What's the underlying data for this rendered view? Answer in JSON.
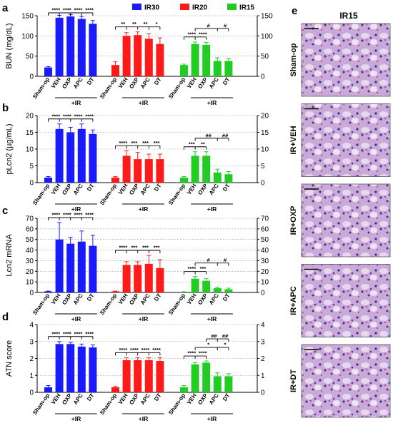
{
  "legend": [
    {
      "name": "IR30",
      "color": "#1a1aff"
    },
    {
      "name": "IR20",
      "color": "#ff1a1a"
    },
    {
      "name": "IR15",
      "color": "#22cc22"
    }
  ],
  "ir_label": "+IR",
  "chart_data": [
    {
      "panel": "a",
      "type": "bar",
      "ylabel": "BUN (mg/dL)",
      "ylim": [
        0,
        150
      ],
      "yticks": [
        0,
        50,
        100,
        150
      ],
      "groups": [
        {
          "series": "IR30",
          "categories": [
            "Sham-op",
            "VEH",
            "OXP",
            "APC",
            "DT"
          ],
          "values": [
            22,
            145,
            148,
            142,
            130
          ],
          "errors": [
            2,
            6,
            5,
            6,
            8
          ]
        },
        {
          "series": "IR20",
          "categories": [
            "Sham-op",
            "VEH",
            "OXP",
            "APC",
            "DT"
          ],
          "values": [
            28,
            100,
            102,
            93,
            80
          ],
          "errors": [
            8,
            8,
            8,
            12,
            15
          ]
        },
        {
          "series": "IR15",
          "categories": [
            "Sham-op",
            "VEH",
            "OXP",
            "APC",
            "DT"
          ],
          "values": [
            28,
            80,
            78,
            38,
            38
          ],
          "errors": [
            2,
            5,
            6,
            8,
            6
          ]
        }
      ],
      "significance": [
        {
          "group": 0,
          "from": 0,
          "to": [
            1,
            2,
            3,
            4
          ],
          "labels": [
            "****",
            "****",
            "****",
            "****"
          ]
        },
        {
          "group": 1,
          "from": 0,
          "to": [
            1,
            2,
            3,
            4
          ],
          "labels": [
            "**",
            "**",
            "**",
            "*"
          ]
        },
        {
          "group": 2,
          "from": 0,
          "to": [
            1,
            2
          ],
          "labels": [
            "****",
            "****"
          ]
        },
        {
          "group": 2,
          "from": 1,
          "to": [
            3,
            4
          ],
          "labels": [
            "#",
            "#"
          ]
        }
      ]
    },
    {
      "panel": "b",
      "type": "bar",
      "ylabel": "pLcn2 (µg/mL)",
      "ylim": [
        0,
        20
      ],
      "yticks": [
        0,
        5,
        10,
        15,
        20
      ],
      "groups": [
        {
          "series": "IR30",
          "categories": [
            "Sham-op",
            "VEH",
            "OXP",
            "APC",
            "DT"
          ],
          "values": [
            1.5,
            16,
            15,
            16,
            14.5
          ],
          "errors": [
            0.3,
            1.5,
            1.5,
            1.5,
            1.2
          ]
        },
        {
          "series": "IR20",
          "categories": [
            "Sham-op",
            "VEH",
            "OXP",
            "APC",
            "DT"
          ],
          "values": [
            1.5,
            8,
            7,
            7,
            7
          ],
          "errors": [
            0.3,
            1.5,
            2,
            1.5,
            1.5
          ]
        },
        {
          "series": "IR15",
          "categories": [
            "Sham-op",
            "VEH",
            "OXP",
            "APC",
            "DT"
          ],
          "values": [
            1.5,
            8,
            8,
            3,
            2.5
          ],
          "errors": [
            0.3,
            1.2,
            1.2,
            1,
            0.8
          ]
        }
      ],
      "significance": [
        {
          "group": 0,
          "from": 0,
          "to": [
            1,
            2,
            3,
            4
          ],
          "labels": [
            "****",
            "****",
            "****",
            "****"
          ]
        },
        {
          "group": 1,
          "from": 0,
          "to": [
            1,
            2,
            3,
            4
          ],
          "labels": [
            "****",
            "***",
            "***",
            "***"
          ]
        },
        {
          "group": 2,
          "from": 0,
          "to": [
            1,
            2
          ],
          "labels": [
            "***",
            "**"
          ]
        },
        {
          "group": 2,
          "from": 1,
          "to": [
            3,
            4
          ],
          "labels": [
            "##",
            "##"
          ]
        }
      ]
    },
    {
      "panel": "c",
      "type": "bar",
      "ylabel": "Lcn2 mRNA",
      "ylim": [
        0,
        70
      ],
      "yticks": [
        0,
        10,
        20,
        30,
        40,
        50,
        60,
        70
      ],
      "groups": [
        {
          "series": "IR30",
          "categories": [
            "Sham-op",
            "VEH",
            "OXP",
            "APC",
            "DT"
          ],
          "values": [
            1,
            50,
            46,
            48,
            44
          ],
          "errors": [
            0.3,
            16,
            6,
            10,
            10
          ]
        },
        {
          "series": "IR20",
          "categories": [
            "Sham-op",
            "VEH",
            "OXP",
            "APC",
            "DT"
          ],
          "values": [
            1,
            26,
            26,
            27,
            23
          ],
          "errors": [
            0.3,
            3,
            3,
            8,
            8
          ]
        },
        {
          "series": "IR15",
          "categories": [
            "Sham-op",
            "VEH",
            "OXP",
            "APC",
            "DT"
          ],
          "values": [
            0.5,
            13,
            11,
            4,
            3
          ],
          "errors": [
            0.2,
            2,
            2,
            1,
            1
          ]
        }
      ],
      "significance": [
        {
          "group": 0,
          "from": 0,
          "to": [
            1,
            2,
            3,
            4
          ],
          "labels": [
            "****",
            "****",
            "****",
            "****"
          ]
        },
        {
          "group": 1,
          "from": 0,
          "to": [
            1,
            2,
            3,
            4
          ],
          "labels": [
            "****",
            "***",
            "***",
            "***"
          ]
        },
        {
          "group": 2,
          "from": 0,
          "to": [
            1,
            2
          ],
          "labels": [
            "****",
            "***"
          ]
        },
        {
          "group": 2,
          "from": 1,
          "to": [
            3,
            4
          ],
          "labels": [
            "#",
            "#"
          ]
        }
      ]
    },
    {
      "panel": "d",
      "type": "bar",
      "ylabel": "ATN score",
      "ylim": [
        0,
        4
      ],
      "yticks": [
        0,
        1,
        2,
        3,
        4
      ],
      "groups": [
        {
          "series": "IR30",
          "categories": [
            "Sham-op",
            "VEH",
            "OXP",
            "APC",
            "DT"
          ],
          "values": [
            0.3,
            2.85,
            2.85,
            2.7,
            2.65
          ],
          "errors": [
            0.1,
            0.15,
            0.1,
            0.15,
            0.15
          ]
        },
        {
          "series": "IR20",
          "categories": [
            "Sham-op",
            "VEH",
            "OXP",
            "APC",
            "DT"
          ],
          "values": [
            0.3,
            1.9,
            1.9,
            1.9,
            1.85
          ],
          "errors": [
            0.05,
            0.15,
            0.15,
            0.15,
            0.2
          ]
        },
        {
          "series": "IR15",
          "categories": [
            "Sham-op",
            "VEH",
            "OXP",
            "APC",
            "DT"
          ],
          "values": [
            0.3,
            1.65,
            1.75,
            0.95,
            0.95
          ],
          "errors": [
            0.1,
            0.1,
            0.1,
            0.2,
            0.15
          ]
        }
      ],
      "significance": [
        {
          "group": 0,
          "from": 0,
          "to": [
            1,
            2,
            3,
            4
          ],
          "labels": [
            "****",
            "****",
            "****",
            "****"
          ]
        },
        {
          "group": 1,
          "from": 0,
          "to": [
            1,
            2,
            3,
            4
          ],
          "labels": [
            "****",
            "****",
            "****",
            "****"
          ]
        },
        {
          "group": 2,
          "from": 0,
          "to": [
            1,
            2
          ],
          "labels": [
            "****",
            "****"
          ]
        },
        {
          "group": 2,
          "from": 1,
          "to": [
            3,
            4
          ],
          "labels": [
            "*",
            "*"
          ]
        },
        {
          "group": 2,
          "from": 2,
          "to": [
            3,
            4
          ],
          "labels": [
            "##",
            "##"
          ]
        }
      ]
    }
  ],
  "histology": {
    "panel": "e",
    "title": "IR15",
    "images": [
      {
        "label": "Sham-op"
      },
      {
        "label": "IR+VEH"
      },
      {
        "label": "IR+OXP"
      },
      {
        "label": "IR+APC"
      },
      {
        "label": "IR+DT"
      }
    ]
  }
}
